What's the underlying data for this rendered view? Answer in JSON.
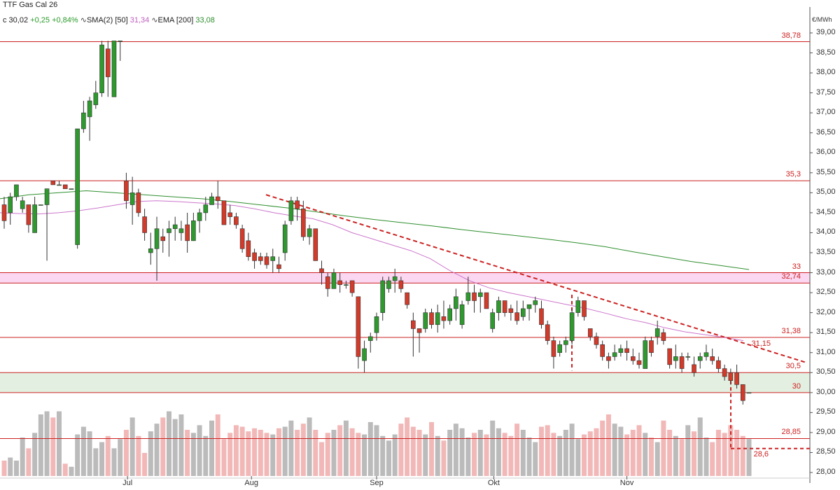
{
  "header": {
    "title": "TTF Gas Cal 26",
    "close": "c 30,02",
    "change": "+0,25",
    "change_pct": "+0,84%",
    "sma_label": "SMA(2)",
    "sma_period": "[50]",
    "sma_value": "31,34",
    "ema_label": "EMA",
    "ema_period": "[200]",
    "ema_value": "33,08"
  },
  "chart_data": {
    "type": "candlestick",
    "unit": "€/MWh",
    "ylim": [
      27.8,
      39.3
    ],
    "y_ticks": [
      "39,00",
      "38,50",
      "38,00",
      "37,50",
      "37,00",
      "36,50",
      "36,00",
      "35,50",
      "35,00",
      "34,50",
      "34,00",
      "33,50",
      "33,00",
      "32,50",
      "32,00",
      "31,50",
      "31,00",
      "30,50",
      "30,00",
      "29,50",
      "29,00",
      "28,50",
      "28,00"
    ],
    "x_ticks": [
      "Jul",
      "Aug",
      "Sep",
      "Okt",
      "Nov"
    ],
    "levels": [
      {
        "value": 38.78,
        "label": "38,78"
      },
      {
        "value": 35.3,
        "label": "35,3"
      },
      {
        "value": 33.0,
        "label": "33"
      },
      {
        "value": 32.74,
        "label": "32,74"
      },
      {
        "value": 31.38,
        "label": "31,38"
      },
      {
        "value": 30.5,
        "label": "30,5"
      },
      {
        "value": 30.0,
        "label": "30"
      },
      {
        "value": 28.85,
        "label": "28,85"
      }
    ],
    "annotations": [
      {
        "label": "31,15",
        "value": 31.15
      },
      {
        "label": "28,6",
        "value": 28.6
      }
    ],
    "colors": {
      "up": "#2e9a2e",
      "down": "#d23a2a",
      "level": "#cc2222",
      "sma": "#cc77cc",
      "ema": "#2f8f2f",
      "band_pink": "#fbd7f2",
      "band_green": "#e3efe0",
      "volume_up": "#bbbbbb",
      "volume_down": "#f2b8b8"
    },
    "candles": [
      [
        34.7,
        34.9,
        34.1,
        34.3
      ],
      [
        34.5,
        35.0,
        34.2,
        34.9
      ],
      [
        34.9,
        35.2,
        34.8,
        35.2
      ],
      [
        34.6,
        34.9,
        34.5,
        34.8
      ],
      [
        34.7,
        34.7,
        34.0,
        34.2
      ],
      [
        34.0,
        34.9,
        34.0,
        34.7
      ],
      [
        34.7,
        34.7,
        34.7,
        34.7
      ],
      [
        34.7,
        35.1,
        33.3,
        35.1
      ],
      [
        35.3,
        35.3,
        35.2,
        35.2
      ],
      [
        35.2,
        35.3,
        35.2,
        35.2
      ],
      [
        35.2,
        35.2,
        35.1,
        35.1
      ],
      [
        35.1,
        35.1,
        35.1,
        35.1
      ],
      [
        33.7,
        36.6,
        33.6,
        36.6
      ],
      [
        36.6,
        37.3,
        36.5,
        37.0
      ],
      [
        36.9,
        37.4,
        36.3,
        37.3
      ],
      [
        37.2,
        37.8,
        37.1,
        37.5
      ],
      [
        37.5,
        38.8,
        37.4,
        38.7
      ],
      [
        38.6,
        38.8,
        37.4,
        37.9
      ],
      [
        37.4,
        38.8,
        37.4,
        38.8
      ],
      [
        38.8,
        38.8,
        38.3,
        38.8
      ],
      [
        35.3,
        35.5,
        34.6,
        34.8
      ],
      [
        34.7,
        35.4,
        34.2,
        35.0
      ],
      [
        35.0,
        35.1,
        34.4,
        34.5
      ],
      [
        34.4,
        34.6,
        33.8,
        34.0
      ],
      [
        33.5,
        34.0,
        33.2,
        33.6
      ],
      [
        33.6,
        34.4,
        32.8,
        34.1
      ],
      [
        33.9,
        34.1,
        33.5,
        33.8
      ],
      [
        34.0,
        34.3,
        33.4,
        34.1
      ],
      [
        34.1,
        34.4,
        33.8,
        34.2
      ],
      [
        34.0,
        34.3,
        33.8,
        34.1
      ],
      [
        34.2,
        34.5,
        33.5,
        33.8
      ],
      [
        33.8,
        34.5,
        33.8,
        34.3
      ],
      [
        34.3,
        34.6,
        34.0,
        34.5
      ],
      [
        34.5,
        34.9,
        34.3,
        34.7
      ],
      [
        34.7,
        35.0,
        34.7,
        34.9
      ],
      [
        34.9,
        35.3,
        34.6,
        34.8
      ],
      [
        34.8,
        34.8,
        34.2,
        34.2
      ],
      [
        34.5,
        34.7,
        34.2,
        34.4
      ],
      [
        34.4,
        34.5,
        34.1,
        34.2
      ],
      [
        34.1,
        34.2,
        33.5,
        33.6
      ],
      [
        33.8,
        34.0,
        33.3,
        33.4
      ],
      [
        33.5,
        33.6,
        33.1,
        33.3
      ],
      [
        33.4,
        33.5,
        33.2,
        33.3
      ],
      [
        33.4,
        33.5,
        33.1,
        33.2
      ],
      [
        33.3,
        33.6,
        33.0,
        33.4
      ],
      [
        33.2,
        33.4,
        33.0,
        33.1
      ],
      [
        33.5,
        34.3,
        33.3,
        34.2
      ],
      [
        34.3,
        34.9,
        34.2,
        34.8
      ],
      [
        34.8,
        34.9,
        34.3,
        34.6
      ],
      [
        34.6,
        34.8,
        33.8,
        33.9
      ],
      [
        33.9,
        34.2,
        33.7,
        34.1
      ],
      [
        34.1,
        34.1,
        33.3,
        33.3
      ],
      [
        33.1,
        33.3,
        32.7,
        33.0
      ],
      [
        32.9,
        33.0,
        32.4,
        32.6
      ],
      [
        32.6,
        33.1,
        32.6,
        33.0
      ],
      [
        32.8,
        33.0,
        32.5,
        32.7
      ],
      [
        32.7,
        32.8,
        32.6,
        32.7
      ],
      [
        32.8,
        32.8,
        32.4,
        32.5
      ],
      [
        32.4,
        32.4,
        30.6,
        30.9
      ],
      [
        30.8,
        31.3,
        30.5,
        31.1
      ],
      [
        31.3,
        31.5,
        31.0,
        31.4
      ],
      [
        31.5,
        32.0,
        31.3,
        31.9
      ],
      [
        32.0,
        32.9,
        31.8,
        32.8
      ],
      [
        32.6,
        32.9,
        32.5,
        32.8
      ],
      [
        32.8,
        33.1,
        32.5,
        32.9
      ],
      [
        32.8,
        32.9,
        32.5,
        32.6
      ],
      [
        32.5,
        32.5,
        32.1,
        32.2
      ],
      [
        31.8,
        32.0,
        30.9,
        31.6
      ],
      [
        31.6,
        31.6,
        31.0,
        31.5
      ],
      [
        31.6,
        32.1,
        31.5,
        32.0
      ],
      [
        32.0,
        32.1,
        31.6,
        31.7
      ],
      [
        31.7,
        32.2,
        31.5,
        32.0
      ],
      [
        31.9,
        32.3,
        31.6,
        31.8
      ],
      [
        31.8,
        32.2,
        31.7,
        32.1
      ],
      [
        32.1,
        32.6,
        31.8,
        32.4
      ],
      [
        31.7,
        32.3,
        31.6,
        32.2
      ],
      [
        32.3,
        32.9,
        32.2,
        32.5
      ],
      [
        32.5,
        32.7,
        32.0,
        32.3
      ],
      [
        32.4,
        32.6,
        32.0,
        32.5
      ],
      [
        32.5,
        32.5,
        32.1,
        32.1
      ],
      [
        31.6,
        32.1,
        31.5,
        32.0
      ],
      [
        32.0,
        32.4,
        31.8,
        32.3
      ],
      [
        32.3,
        32.3,
        31.9,
        32.0
      ],
      [
        32.1,
        32.2,
        31.8,
        32.0
      ],
      [
        32.0,
        32.3,
        31.7,
        31.8
      ],
      [
        31.9,
        32.3,
        31.8,
        32.1
      ],
      [
        32.1,
        32.2,
        31.8,
        32.2
      ],
      [
        32.2,
        32.4,
        32.0,
        32.3
      ],
      [
        32.1,
        32.3,
        31.6,
        31.7
      ],
      [
        31.7,
        31.8,
        31.2,
        31.3
      ],
      [
        31.3,
        31.4,
        30.6,
        30.9
      ],
      [
        31.0,
        31.3,
        30.9,
        31.2
      ],
      [
        31.2,
        31.4,
        31.0,
        31.3
      ],
      [
        31.3,
        32.1,
        31.2,
        32.0
      ],
      [
        32.0,
        32.4,
        31.9,
        32.3
      ],
      [
        32.3,
        32.3,
        31.8,
        31.9
      ],
      [
        31.6,
        31.6,
        31.3,
        31.4
      ],
      [
        31.4,
        31.5,
        31.1,
        31.2
      ],
      [
        31.2,
        31.3,
        30.8,
        30.9
      ],
      [
        30.9,
        31.0,
        30.6,
        30.8
      ],
      [
        30.9,
        31.2,
        30.8,
        31.0
      ],
      [
        31.0,
        31.2,
        30.9,
        31.1
      ],
      [
        31.1,
        31.3,
        30.8,
        31.0
      ],
      [
        30.9,
        31.1,
        30.7,
        30.8
      ],
      [
        30.8,
        31.0,
        30.6,
        30.7
      ],
      [
        30.6,
        31.4,
        30.6,
        31.3
      ],
      [
        31.3,
        31.4,
        30.9,
        31.0
      ],
      [
        31.4,
        31.8,
        31.2,
        31.6
      ],
      [
        31.5,
        31.6,
        31.2,
        31.3
      ],
      [
        31.1,
        31.1,
        30.6,
        30.7
      ],
      [
        30.8,
        31.2,
        30.6,
        30.9
      ],
      [
        30.9,
        31.0,
        30.5,
        30.6
      ],
      [
        30.9,
        31.0,
        30.8,
        30.9
      ],
      [
        30.7,
        30.9,
        30.4,
        30.5
      ],
      [
        30.8,
        31.0,
        30.6,
        30.9
      ],
      [
        30.9,
        31.2,
        30.8,
        31.0
      ],
      [
        30.9,
        31.1,
        30.7,
        30.8
      ],
      [
        30.8,
        30.9,
        30.5,
        30.6
      ],
      [
        30.6,
        30.7,
        30.3,
        30.4
      ],
      [
        30.5,
        30.6,
        30.2,
        30.3
      ],
      [
        30.5,
        30.7,
        30.1,
        30.2
      ],
      [
        30.2,
        30.2,
        29.7,
        29.8
      ],
      [
        30.0,
        30.0,
        30.0,
        30.0
      ]
    ],
    "sma": [
      34.5,
      34.48,
      34.47,
      34.5,
      34.55,
      34.62,
      34.7,
      34.78,
      34.8,
      34.78,
      34.75,
      34.72,
      34.68,
      34.6,
      34.5,
      34.42,
      34.35,
      34.2,
      34.0,
      33.85,
      33.7,
      33.55,
      33.35,
      33.05,
      32.8,
      32.62,
      32.5,
      32.4,
      32.3,
      32.2,
      32.1,
      31.98,
      31.85,
      31.75,
      31.62,
      31.52,
      31.45,
      31.38,
      31.3
    ],
    "ema": [
      34.85,
      34.95,
      35.0,
      35.05,
      35.0,
      34.95,
      34.9,
      34.85,
      34.78,
      34.7,
      34.62,
      34.52,
      34.42,
      34.33,
      34.25,
      34.17,
      34.08,
      34.0,
      33.92,
      33.84,
      33.75,
      33.65,
      33.52,
      33.4,
      33.28,
      33.18,
      33.08
    ]
  }
}
